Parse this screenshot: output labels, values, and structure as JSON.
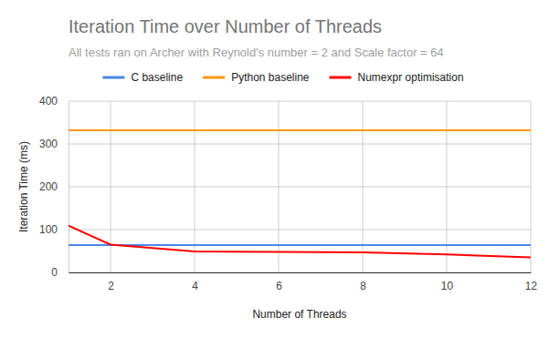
{
  "chart_data": {
    "type": "line",
    "title": "Iteration Time over Number of Threads",
    "subtitle": "All tests ran on Archer with Reynold's number = 2 and Scale factor = 64",
    "x_label": "Number of Threads",
    "y_label": "Iteration Time (ms)",
    "x": [
      1,
      2,
      4,
      6,
      8,
      10,
      12
    ],
    "series": [
      {
        "name": "C baseline",
        "color": "#4a86e8",
        "values": [
          64,
          64,
          64,
          64,
          64,
          64,
          64
        ]
      },
      {
        "name": "Python baseline",
        "color": "#ff9900",
        "values": [
          332,
          332,
          332,
          332,
          332,
          332,
          332
        ]
      },
      {
        "name": "Numexpr optimisation",
        "color": "#ff0000",
        "values": [
          109,
          65,
          49,
          48,
          47,
          42,
          35
        ]
      }
    ],
    "xlim": [
      1,
      12
    ],
    "xticks": [
      2,
      4,
      6,
      8,
      10,
      12
    ],
    "ylim": [
      0,
      400
    ],
    "yticks": [
      0,
      100,
      200,
      300,
      400
    ],
    "grid": true,
    "legend": "top"
  }
}
